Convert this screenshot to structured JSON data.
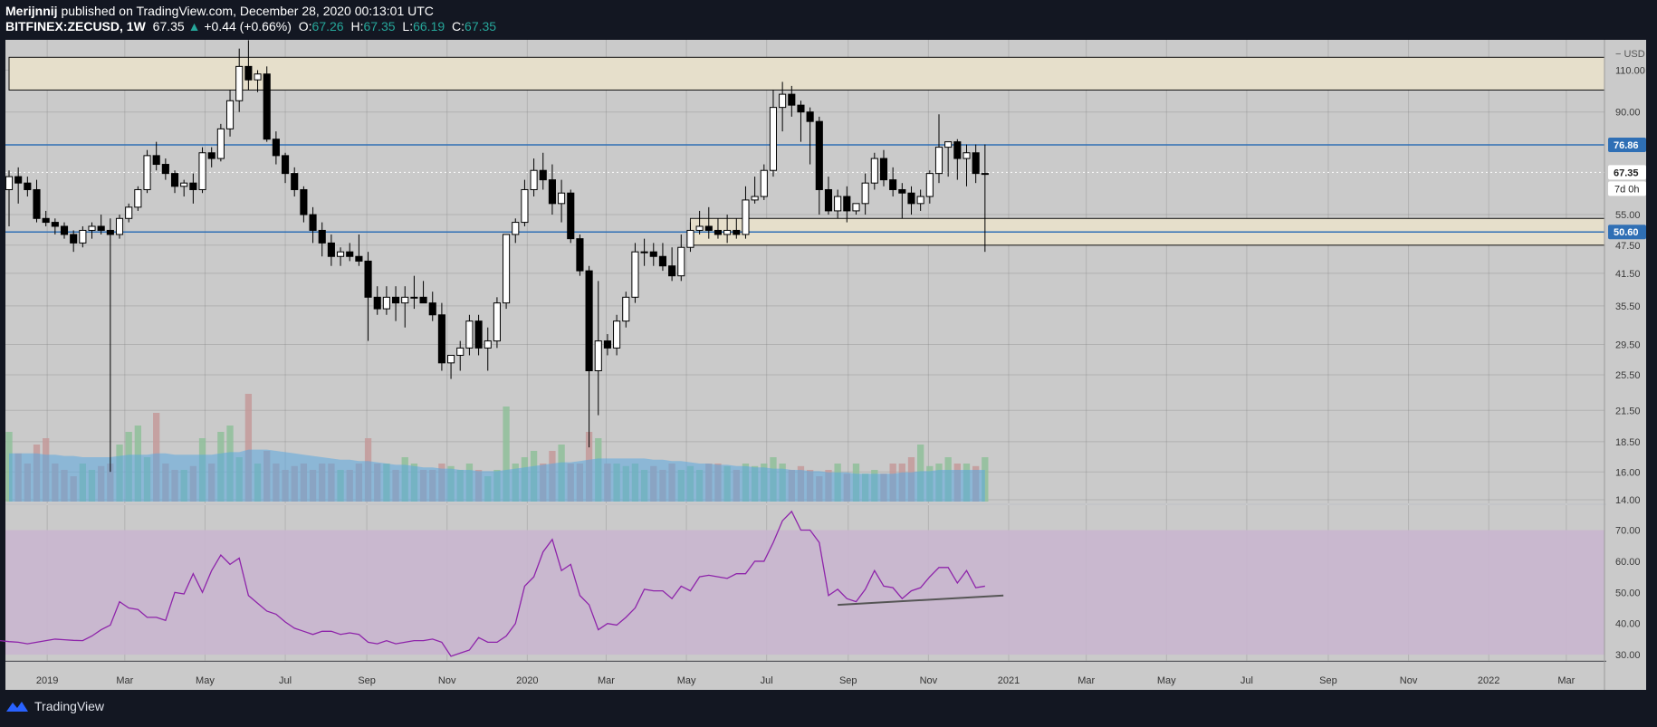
{
  "header": {
    "author": "Merijnnij",
    "published": "published on TradingView.com, December 28, 2020 00:13:01 UTC",
    "symbol": "BITFINEX:ZECUSD, 1W",
    "last": "67.35",
    "change": "+0.44 (+0.66%)",
    "o_label": "O:",
    "o": "67.26",
    "h_label": "H:",
    "h": "67.35",
    "l_label": "L:",
    "l": "66.19",
    "c_label": "C:",
    "c": "67.35"
  },
  "footer": {
    "brand": "TradingView"
  },
  "colors": {
    "background": "#cacaca",
    "frame": "#131722",
    "zone": "#e6dfcb",
    "hline": "#2f6fb5",
    "rsi_band": "#c9b6cf",
    "rsi_line": "#8e24aa",
    "volume_ma": "#5aa7e0",
    "volume_up": "#8fbf9a",
    "volume_down": "#c49a9a"
  },
  "chart_data": {
    "type": "candlestick",
    "price_axis": {
      "unit_label": "USD",
      "scale": "log",
      "ticks": [
        14.0,
        16.0,
        18.5,
        21.5,
        25.5,
        29.5,
        35.5,
        41.5,
        47.5,
        55.0,
        90.0,
        110.0
      ],
      "tick_labels": [
        "14.00",
        "16.00",
        "18.50",
        "21.50",
        "25.50",
        "29.50",
        "35.50",
        "41.50",
        "47.50",
        "55.00",
        "90.00",
        "110.00"
      ],
      "range": [
        14.0,
        140.0
      ]
    },
    "badges": [
      {
        "value": 76.86,
        "label": "76.86",
        "style": "blue"
      },
      {
        "value": 67.35,
        "label": "67.35",
        "style": "white"
      },
      {
        "value": 50.6,
        "label": "50.60",
        "style": "blue"
      }
    ],
    "countdown": "7d 0h",
    "horizontal_lines": [
      76.86,
      50.6
    ],
    "zones": [
      {
        "low": 100.0,
        "high": 117.0,
        "from": "2018-12-03",
        "to": "2023-04-01"
      },
      {
        "low": 47.5,
        "high": 54.0,
        "from": "2020-05-04",
        "to": "2023-04-01"
      }
    ],
    "time_axis": {
      "labels": [
        "2019",
        "Mar",
        "May",
        "Jul",
        "Sep",
        "Nov",
        "2020",
        "Mar",
        "May",
        "Jul",
        "Sep",
        "Nov",
        "2021",
        "Mar",
        "May",
        "Jul",
        "Sep",
        "Nov",
        "2022",
        "Mar"
      ],
      "dates": [
        "2019-01-01",
        "2019-03-01",
        "2019-05-01",
        "2019-07-01",
        "2019-09-01",
        "2019-11-01",
        "2020-01-01",
        "2020-03-01",
        "2020-05-01",
        "2020-07-01",
        "2020-09-01",
        "2020-11-01",
        "2021-01-01",
        "2021-03-01",
        "2021-05-01",
        "2021-07-01",
        "2021-09-01",
        "2021-11-01",
        "2022-01-01",
        "2022-03-01"
      ]
    },
    "first_week": "2018-12-03",
    "interval": "1W",
    "candles_ohlc": [
      [
        62,
        68,
        52,
        66
      ],
      [
        66,
        69,
        58,
        64
      ],
      [
        64,
        66,
        60,
        62
      ],
      [
        62,
        65,
        53,
        54
      ],
      [
        54,
        56,
        52,
        53
      ],
      [
        53,
        54,
        50,
        52
      ],
      [
        52,
        53,
        49,
        50
      ],
      [
        50,
        51,
        46,
        48
      ],
      [
        48,
        52,
        47,
        51
      ],
      [
        51,
        53,
        49,
        52
      ],
      [
        52,
        55,
        50,
        51
      ],
      [
        51,
        54,
        16,
        50
      ],
      [
        50,
        55,
        49,
        54
      ],
      [
        54,
        58,
        53,
        57
      ],
      [
        57,
        63,
        56,
        62
      ],
      [
        62,
        75,
        61,
        73
      ],
      [
        73,
        78,
        68,
        70
      ],
      [
        70,
        72,
        65,
        67
      ],
      [
        67,
        68,
        61,
        63
      ],
      [
        63,
        65,
        60,
        64
      ],
      [
        64,
        67,
        58,
        62
      ],
      [
        62,
        76,
        61,
        74
      ],
      [
        74,
        76,
        69,
        72
      ],
      [
        72,
        85,
        71,
        83
      ],
      [
        83,
        100,
        80,
        95
      ],
      [
        95,
        122,
        90,
        112
      ],
      [
        112,
        127,
        100,
        105
      ],
      [
        105,
        110,
        99,
        108
      ],
      [
        108,
        112,
        78,
        79
      ],
      [
        79,
        82,
        70,
        73
      ],
      [
        73,
        74,
        64,
        67
      ],
      [
        67,
        69,
        60,
        62
      ],
      [
        62,
        63,
        53,
        55
      ],
      [
        55,
        57,
        48,
        51
      ],
      [
        51,
        53,
        45,
        48
      ],
      [
        48,
        50,
        43,
        45
      ],
      [
        45,
        47,
        43,
        46
      ],
      [
        46,
        48,
        44,
        45
      ],
      [
        45,
        50,
        43,
        44
      ],
      [
        44,
        46,
        30,
        37
      ],
      [
        37,
        39,
        34,
        35
      ],
      [
        35,
        39,
        34,
        37
      ],
      [
        37,
        39,
        33,
        36
      ],
      [
        36,
        39,
        32,
        37
      ],
      [
        37,
        41,
        35,
        37
      ],
      [
        37,
        40,
        36,
        36
      ],
      [
        36,
        38,
        33,
        34
      ],
      [
        34,
        36,
        26,
        27
      ],
      [
        27,
        28,
        25,
        28
      ],
      [
        28,
        30,
        26,
        29
      ],
      [
        29,
        34,
        28,
        33
      ],
      [
        33,
        34,
        28,
        29
      ],
      [
        29,
        32,
        26,
        30
      ],
      [
        30,
        37,
        29,
        36
      ],
      [
        36,
        50,
        35,
        50
      ],
      [
        50,
        54,
        48,
        53
      ],
      [
        53,
        65,
        52,
        62
      ],
      [
        62,
        72,
        60,
        68
      ],
      [
        68,
        74,
        62,
        65
      ],
      [
        65,
        70,
        55,
        58
      ],
      [
        58,
        65,
        53,
        61
      ],
      [
        61,
        62,
        48,
        49
      ],
      [
        49,
        50,
        41,
        42
      ],
      [
        42,
        43,
        18,
        26
      ],
      [
        26,
        40,
        21,
        30
      ],
      [
        30,
        31,
        28,
        29
      ],
      [
        29,
        34,
        28,
        33
      ],
      [
        33,
        38,
        32,
        37
      ],
      [
        37,
        48,
        36,
        46
      ],
      [
        46,
        49,
        43,
        46
      ],
      [
        46,
        48,
        43,
        45
      ],
      [
        45,
        48,
        42,
        43
      ],
      [
        43,
        47,
        40,
        41
      ],
      [
        41,
        50,
        40,
        47
      ],
      [
        47,
        53,
        46,
        51
      ],
      [
        51,
        56,
        50,
        52
      ],
      [
        52,
        57,
        49,
        51
      ],
      [
        51,
        54,
        49,
        50
      ],
      [
        50,
        55,
        48,
        51
      ],
      [
        51,
        54,
        49,
        50
      ],
      [
        50,
        63,
        49,
        59
      ],
      [
        59,
        66,
        58,
        60
      ],
      [
        60,
        70,
        59,
        68
      ],
      [
        68,
        100,
        66,
        92
      ],
      [
        92,
        104,
        82,
        98
      ],
      [
        98,
        102,
        88,
        93
      ],
      [
        93,
        95,
        78,
        90
      ],
      [
        90,
        92,
        70,
        86
      ],
      [
        86,
        88,
        55,
        62
      ],
      [
        62,
        66,
        55,
        56
      ],
      [
        56,
        62,
        54,
        60
      ],
      [
        60,
        63,
        53,
        56
      ],
      [
        56,
        58,
        55,
        58
      ],
      [
        58,
        67,
        55,
        64
      ],
      [
        64,
        74,
        62,
        72
      ],
      [
        72,
        75,
        63,
        65
      ],
      [
        65,
        69,
        60,
        62
      ],
      [
        62,
        64,
        54,
        61
      ],
      [
        61,
        63,
        55,
        58
      ],
      [
        58,
        62,
        56,
        60
      ],
      [
        60,
        68,
        58,
        67
      ],
      [
        67,
        89,
        64,
        76
      ],
      [
        76,
        78,
        66,
        78
      ],
      [
        78,
        79,
        65,
        72
      ],
      [
        72,
        77,
        63,
        74
      ],
      [
        74,
        77,
        64,
        67
      ],
      [
        67,
        77,
        46,
        67
      ]
    ],
    "volume": {
      "relative_values": [
        0.55,
        0.38,
        0.3,
        0.45,
        0.5,
        0.3,
        0.25,
        0.2,
        0.3,
        0.25,
        0.28,
        0.3,
        0.45,
        0.55,
        0.6,
        0.35,
        0.7,
        0.3,
        0.25,
        0.25,
        0.28,
        0.5,
        0.3,
        0.55,
        0.6,
        0.35,
        0.85,
        0.3,
        0.4,
        0.3,
        0.25,
        0.28,
        0.3,
        0.25,
        0.3,
        0.3,
        0.25,
        0.25,
        0.3,
        0.5,
        0.3,
        0.3,
        0.25,
        0.35,
        0.3,
        0.25,
        0.25,
        0.3,
        0.28,
        0.25,
        0.3,
        0.25,
        0.2,
        0.25,
        0.75,
        0.3,
        0.35,
        0.4,
        0.3,
        0.4,
        0.45,
        0.3,
        0.3,
        0.55,
        0.5,
        0.3,
        0.3,
        0.28,
        0.3,
        0.25,
        0.28,
        0.25,
        0.3,
        0.25,
        0.28,
        0.25,
        0.3,
        0.3,
        0.28,
        0.25,
        0.3,
        0.28,
        0.3,
        0.35,
        0.3,
        0.25,
        0.28,
        0.25,
        0.2,
        0.25,
        0.3,
        0.22,
        0.3,
        0.22,
        0.25,
        0.22,
        0.3,
        0.3,
        0.35,
        0.45,
        0.28,
        0.3,
        0.35,
        0.3,
        0.3,
        0.28,
        0.35
      ],
      "ma_relative": [
        0.38,
        0.38,
        0.38,
        0.38,
        0.37,
        0.37,
        0.36,
        0.36,
        0.35,
        0.35,
        0.35,
        0.35,
        0.36,
        0.37,
        0.37,
        0.37,
        0.38,
        0.38,
        0.37,
        0.37,
        0.37,
        0.37,
        0.37,
        0.38,
        0.39,
        0.39,
        0.41,
        0.41,
        0.41,
        0.4,
        0.39,
        0.38,
        0.37,
        0.36,
        0.35,
        0.34,
        0.33,
        0.33,
        0.32,
        0.32,
        0.31,
        0.3,
        0.29,
        0.29,
        0.28,
        0.27,
        0.27,
        0.26,
        0.26,
        0.25,
        0.25,
        0.24,
        0.24,
        0.24,
        0.25,
        0.26,
        0.27,
        0.28,
        0.29,
        0.3,
        0.31,
        0.31,
        0.32,
        0.33,
        0.34,
        0.34,
        0.34,
        0.34,
        0.34,
        0.34,
        0.33,
        0.33,
        0.32,
        0.32,
        0.31,
        0.3,
        0.3,
        0.29,
        0.29,
        0.28,
        0.28,
        0.27,
        0.27,
        0.26,
        0.26,
        0.25,
        0.25,
        0.24,
        0.24,
        0.23,
        0.23,
        0.23,
        0.22,
        0.22,
        0.22,
        0.22,
        0.22,
        0.23,
        0.23,
        0.24,
        0.24,
        0.25,
        0.25,
        0.25,
        0.25,
        0.25,
        0.25
      ]
    },
    "rsi": {
      "ticks": [
        30,
        40,
        50,
        60,
        70
      ],
      "tick_labels": [
        "30.00",
        "40.00",
        "50.00",
        "60.00",
        "70.00"
      ],
      "range": [
        28,
        78
      ],
      "band": [
        30,
        70
      ],
      "values": [
        36,
        35.5,
        35.5,
        34.5,
        34.5,
        34.2,
        34,
        33.5,
        34,
        34.5,
        35,
        34.8,
        34.6,
        34.5,
        36,
        38,
        39.5,
        47,
        45,
        44.5,
        42,
        42,
        41,
        50,
        49.5,
        56,
        50,
        57,
        62,
        59,
        61,
        49,
        46.5,
        44,
        43,
        40.5,
        38.5,
        37.5,
        36.5,
        37.5,
        37.5,
        36.5,
        37,
        36.5,
        34,
        33.5,
        34.5,
        33.5,
        34,
        34.5,
        34.5,
        35,
        34,
        29.5,
        30.5,
        31.5,
        35.5,
        34,
        34,
        36,
        40,
        52,
        55,
        63,
        67,
        57,
        59,
        49,
        46,
        38,
        40,
        39.5,
        42,
        45,
        51,
        50.5,
        50.5,
        48,
        52,
        50.5,
        55,
        55.5,
        55,
        54.5,
        56,
        56,
        60,
        60,
        66,
        73,
        76,
        70,
        70,
        66,
        49,
        51,
        48,
        47,
        51,
        57,
        52,
        51.5,
        48,
        50.5,
        51.5,
        55,
        58,
        58,
        53,
        57,
        51.5,
        52
      ],
      "trendline": [
        [
          -16,
          46
        ],
        [
          2,
          49
        ]
      ]
    }
  }
}
